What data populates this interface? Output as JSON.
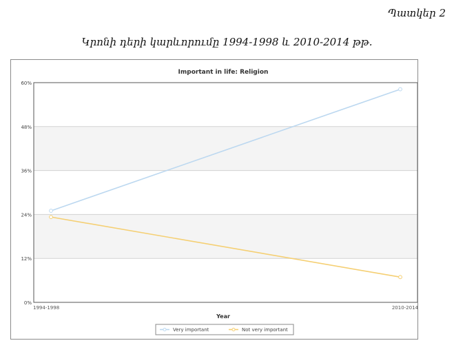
{
  "document": {
    "figure_caption": "Պատկեր 2",
    "heading": "Կրոնի դերի կարևորումը 1994-1998 և 2010-2014 թթ."
  },
  "chart_data": {
    "type": "line",
    "title": "Important in life: Religion",
    "xlabel": "Year",
    "ylabel": "",
    "categories": [
      "1994-1998",
      "2010-2014"
    ],
    "ylim": [
      0,
      60
    ],
    "yticks": [
      0,
      12,
      24,
      36,
      48,
      60
    ],
    "ytick_suffix": "%",
    "grid": true,
    "legend_position": "bottom-center",
    "series": [
      {
        "name": "Very important",
        "values": [
          25,
          58.2
        ],
        "color": "#bcd8f0"
      },
      {
        "name": "Not very important",
        "values": [
          23.3,
          6.9
        ],
        "color": "#f5cf72"
      }
    ]
  }
}
